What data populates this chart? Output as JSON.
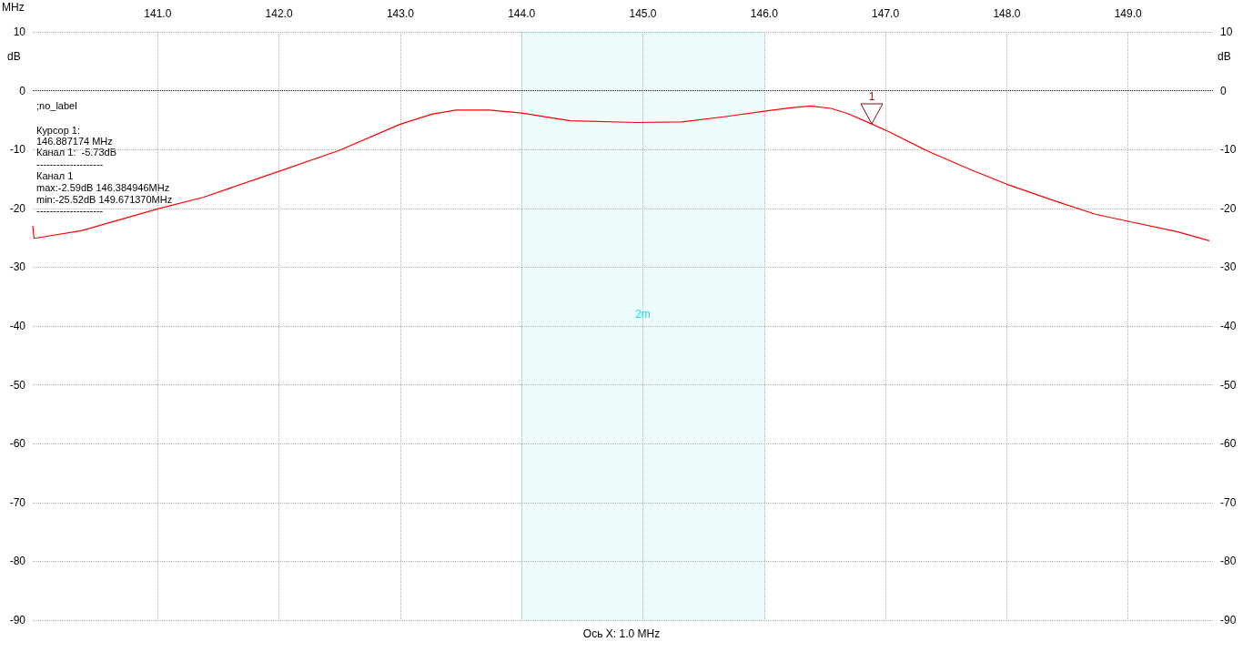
{
  "chart_data": {
    "type": "line",
    "xlabel": "MHz",
    "ylabel": "dB",
    "y2label": "dB",
    "x": [
      139.97,
      139.98,
      140.37,
      141.0,
      141.38,
      142.0,
      142.49,
      143.0,
      143.26,
      143.46,
      143.73,
      144.0,
      144.4,
      144.95,
      145.32,
      145.68,
      146.0,
      146.22,
      146.38,
      146.55,
      146.69,
      146.89,
      147.03,
      147.34,
      147.71,
      148.0,
      148.39,
      148.73,
      149.0,
      149.41,
      149.67
    ],
    "series": [
      {
        "color": "#ff0000",
        "values": [
          -23.0,
          -25.1,
          -23.8,
          -20.1,
          -18.1,
          -13.7,
          -10.2,
          -5.7,
          -4.0,
          -3.3,
          -3.3,
          -3.8,
          -5.1,
          -5.4,
          -5.3,
          -4.4,
          -3.5,
          -2.9,
          -2.6,
          -3.0,
          -3.9,
          -5.7,
          -7.0,
          -10.2,
          -13.5,
          -15.9,
          -18.7,
          -21.0,
          -22.2,
          -24.0,
          -25.5
        ]
      }
    ],
    "xlim": [
      139.97,
      149.7
    ],
    "xticks": [
      {
        "value": 141,
        "label": "141.0"
      },
      {
        "value": 142,
        "label": "142.0"
      },
      {
        "value": 143,
        "label": "143.0"
      },
      {
        "value": 144,
        "label": "144.0"
      },
      {
        "value": 145,
        "label": "145.0"
      },
      {
        "value": 146,
        "label": "146.0"
      },
      {
        "value": 147,
        "label": "147.0"
      },
      {
        "value": 148,
        "label": "148.0"
      },
      {
        "value": 149,
        "label": "149.0"
      }
    ],
    "ylim": [
      -90,
      10
    ],
    "yticks": [
      10,
      0,
      -10,
      -20,
      -30,
      -40,
      -50,
      -60,
      -70,
      -80,
      -90
    ],
    "y2lim": [
      -90,
      10
    ],
    "y2ticks": [
      10,
      0,
      -10,
      -20,
      -30,
      -40,
      -50,
      -60,
      -70,
      -80,
      -90
    ],
    "grid": true,
    "line_style": "solid",
    "marker": "none",
    "ref_lines": [
      {
        "axis": "y",
        "value": 0,
        "color": "#000000",
        "line_style": "dotted"
      }
    ],
    "bands": [
      {
        "axis": "x",
        "from": 144,
        "to": 146,
        "label": "2m",
        "color": "#00e5ee"
      }
    ],
    "annotations": [
      ";no_label",
      "Курсор 1:",
      "146.887174 MHz",
      "Канал 1:  -5.73dB",
      "--------------------",
      "Канал 1",
      "max:-2.59dB 146.384946MHz",
      "min:-25.52dB 149.671370MHz",
      "--------------------",
      {
        "text": "1",
        "x": 146.887174,
        "y": -5.73
      },
      "Ось X: 1.0 MHz"
    ]
  }
}
